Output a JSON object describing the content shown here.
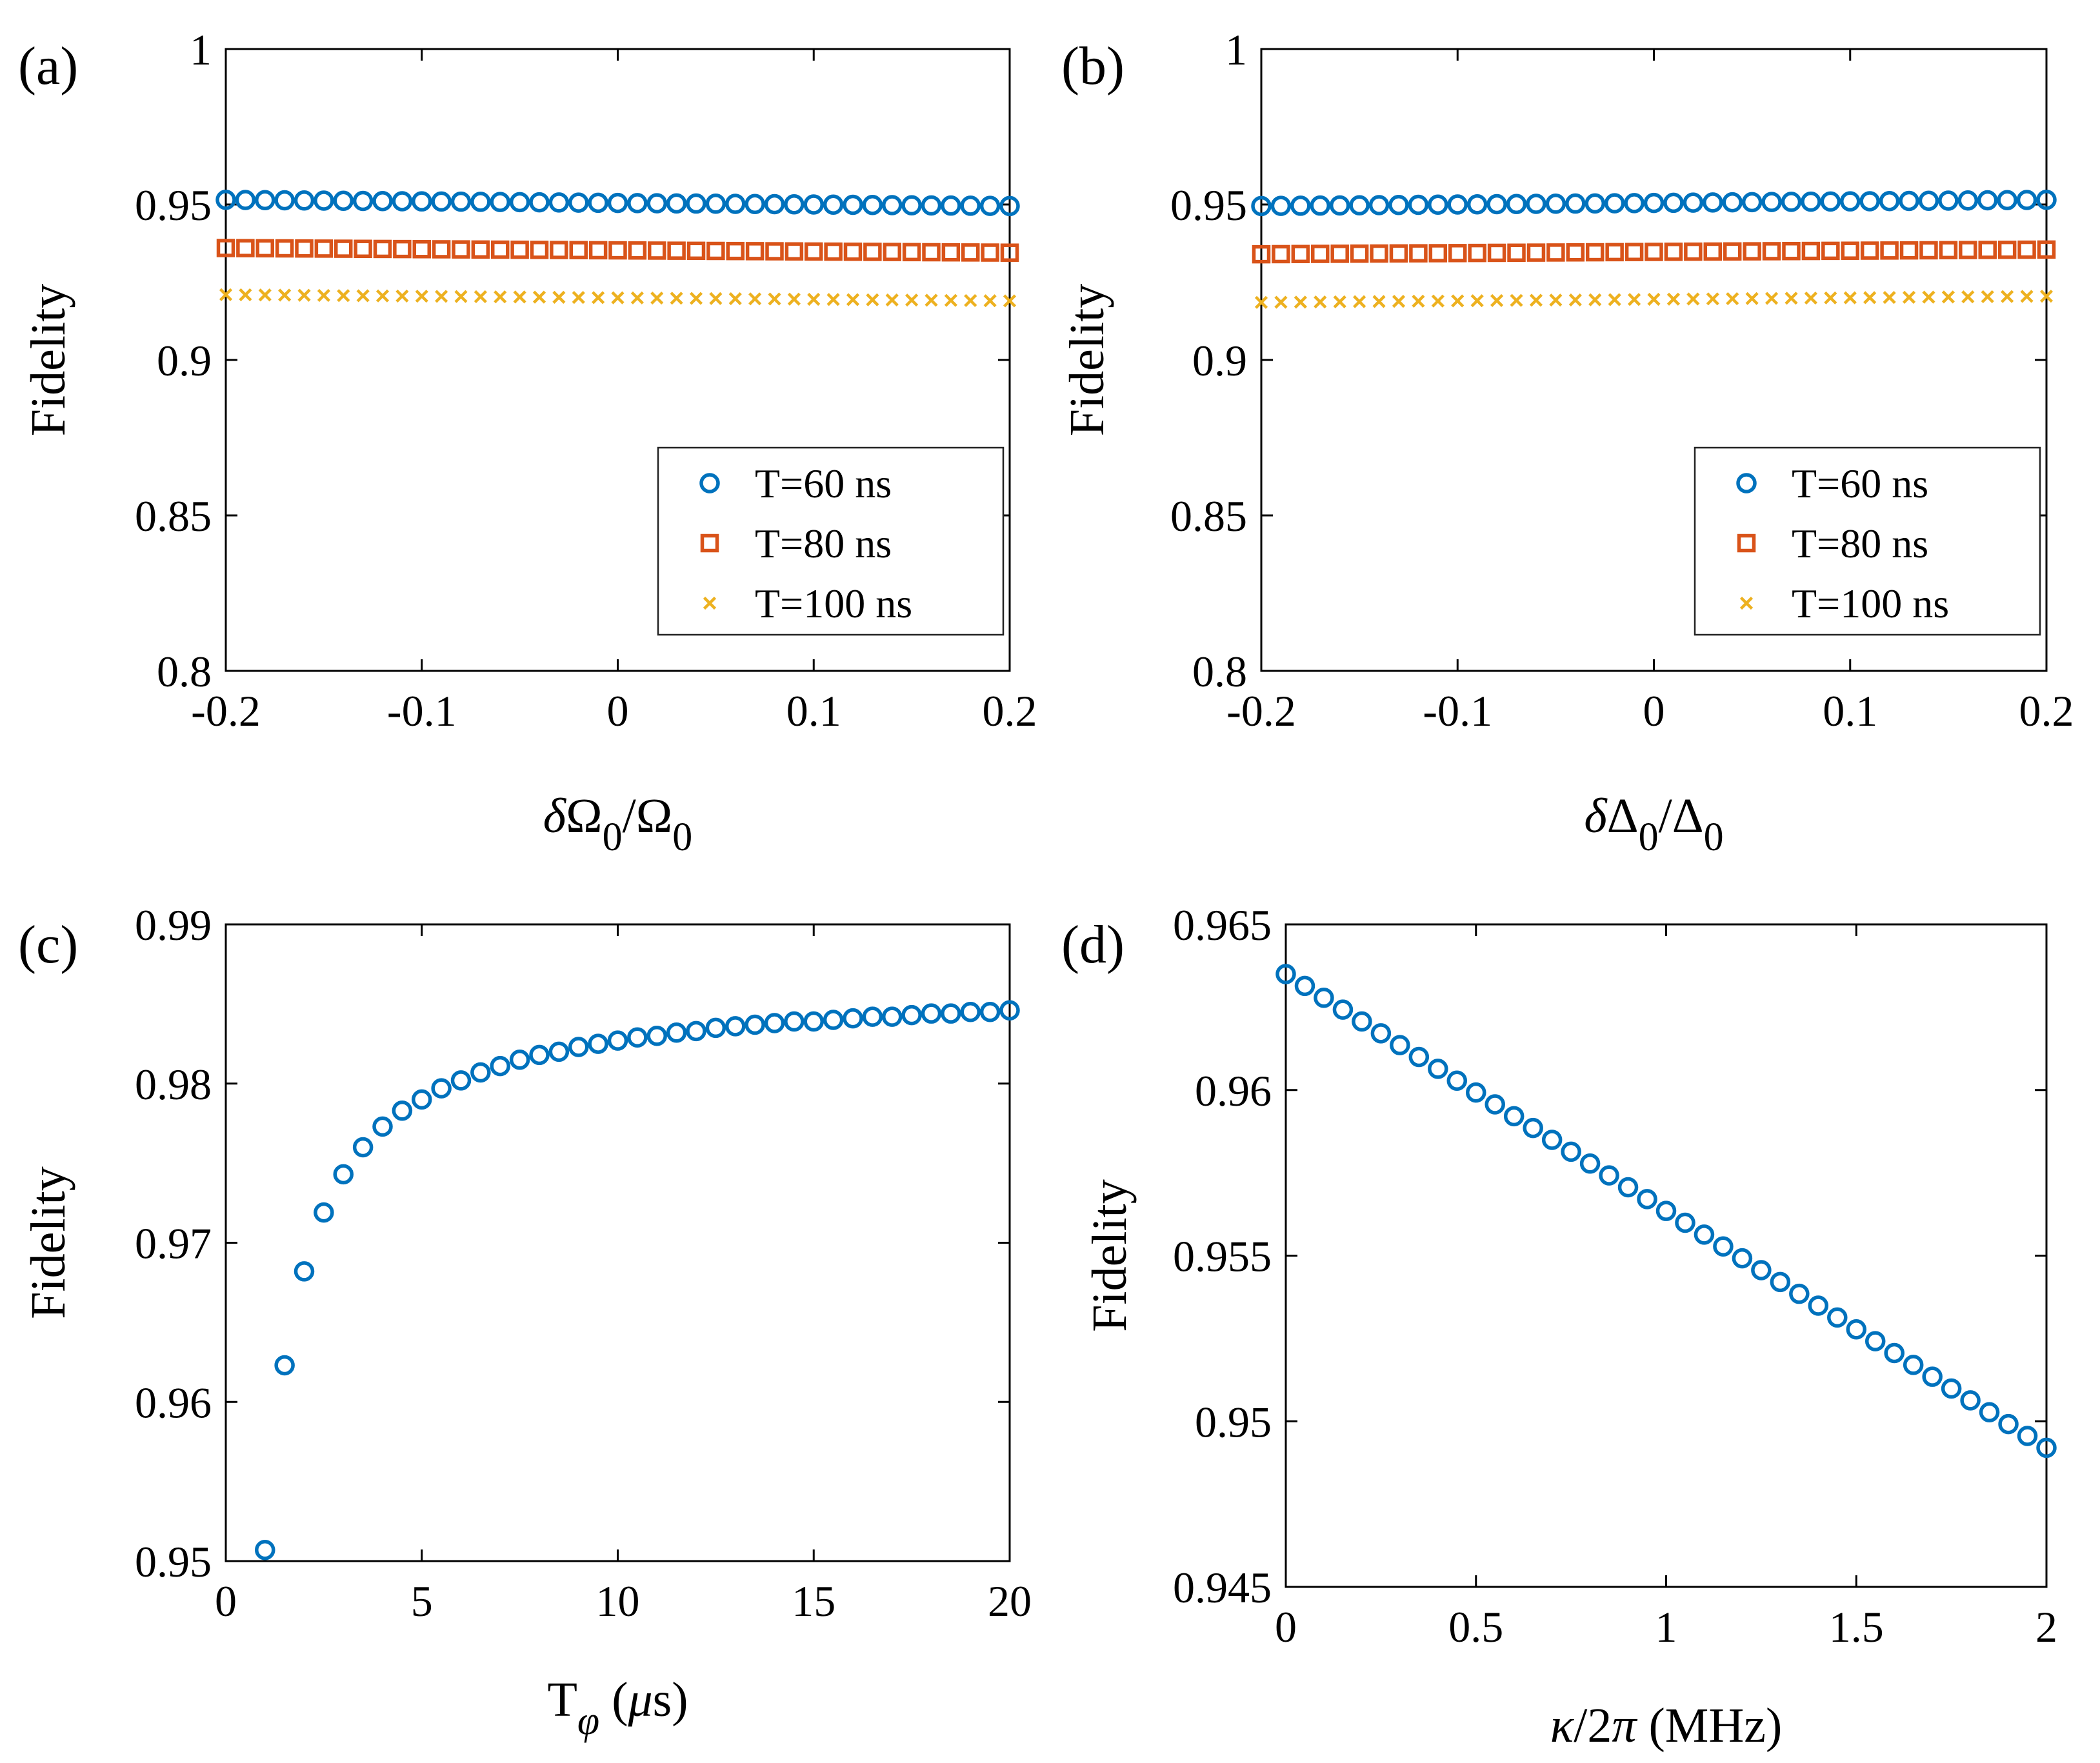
{
  "colors": {
    "series_60": "#0072BD",
    "series_80": "#D95319",
    "series_100": "#EDB120",
    "axes": "#000000"
  },
  "chart_data": [
    {
      "id": "a",
      "panel_label": "(a)",
      "type": "scatter",
      "xlabel": "δΩ0/Ω0",
      "xlabel_parts": {
        "sym": "δΩ",
        "sub": "0",
        "slash": "/Ω",
        "sub2": "0"
      },
      "ylabel": "Fidelity",
      "xlim": [
        -0.2,
        0.2
      ],
      "ylim": [
        0.8,
        1
      ],
      "xticks": [
        -0.2,
        -0.1,
        0,
        0.1,
        0.2
      ],
      "xtick_labels": [
        "-0.2",
        "-0.1",
        "0",
        "0.1",
        "0.2"
      ],
      "yticks": [
        0.8,
        0.85,
        0.9,
        0.95,
        1
      ],
      "ytick_labels": [
        "0.8",
        "0.85",
        "0.9",
        "0.95",
        "1"
      ],
      "legend_position": "bottom-right",
      "series": [
        {
          "name": "T=60 ns",
          "marker": "circle",
          "color": "#0072BD",
          "x_start": -0.2,
          "x_end": 0.2,
          "count": 41,
          "y_start": 0.9515,
          "y_end": 0.9495
        },
        {
          "name": "T=80 ns",
          "marker": "square",
          "color": "#D95319",
          "x_start": -0.2,
          "x_end": 0.2,
          "count": 41,
          "y_start": 0.936,
          "y_end": 0.9345
        },
        {
          "name": "T=100 ns",
          "marker": "x",
          "color": "#EDB120",
          "x_start": -0.2,
          "x_end": 0.2,
          "count": 41,
          "y_start": 0.921,
          "y_end": 0.919
        }
      ]
    },
    {
      "id": "b",
      "panel_label": "(b)",
      "type": "scatter",
      "xlabel": "δΔ0/Δ0",
      "xlabel_parts": {
        "sym": "δΔ",
        "sub": "0",
        "slash": "/Δ",
        "sub2": "0"
      },
      "ylabel": "Fidelity",
      "xlim": [
        -0.2,
        0.2
      ],
      "ylim": [
        0.8,
        1
      ],
      "xticks": [
        -0.2,
        -0.1,
        0,
        0.1,
        0.2
      ],
      "xtick_labels": [
        "-0.2",
        "-0.1",
        "0",
        "0.1",
        "0.2"
      ],
      "yticks": [
        0.8,
        0.85,
        0.9,
        0.95,
        1
      ],
      "ytick_labels": [
        "0.8",
        "0.85",
        "0.9",
        "0.95",
        "1"
      ],
      "legend_position": "bottom-right",
      "series": [
        {
          "name": "T=60 ns",
          "marker": "circle",
          "color": "#0072BD",
          "x_start": -0.2,
          "x_end": 0.2,
          "count": 41,
          "y_start": 0.9495,
          "y_end": 0.9515
        },
        {
          "name": "T=80 ns",
          "marker": "square",
          "color": "#D95319",
          "x_start": -0.2,
          "x_end": 0.2,
          "count": 41,
          "y_start": 0.934,
          "y_end": 0.9355
        },
        {
          "name": "T=100 ns",
          "marker": "x",
          "color": "#EDB120",
          "x_start": -0.2,
          "x_end": 0.2,
          "count": 41,
          "y_start": 0.9185,
          "y_end": 0.9205
        }
      ]
    },
    {
      "id": "c",
      "panel_label": "(c)",
      "type": "scatter",
      "xlabel": "Tφ (μs)",
      "xlabel_parts": {
        "sym": "T",
        "sub": "φ",
        "rest": " (μs)"
      },
      "ylabel": "Fidelity",
      "xlim": [
        0,
        20
      ],
      "ylim": [
        0.95,
        0.99
      ],
      "xticks": [
        0,
        5,
        10,
        15,
        20
      ],
      "xtick_labels": [
        "0",
        "5",
        "10",
        "15",
        "20"
      ],
      "yticks": [
        0.95,
        0.96,
        0.97,
        0.98,
        0.99
      ],
      "ytick_labels": [
        "0.95",
        "0.96",
        "0.97",
        "0.98",
        "0.99"
      ],
      "series": [
        {
          "name": "Fidelity",
          "marker": "circle",
          "color": "#0072BD",
          "x": [
            1,
            1.5,
            2,
            2.5,
            3,
            3.5,
            4,
            4.5,
            5,
            5.5,
            6,
            6.5,
            7,
            7.5,
            8,
            8.5,
            9,
            9.5,
            10,
            10.5,
            11,
            11.5,
            12,
            12.5,
            13,
            13.5,
            14,
            14.5,
            15,
            15.5,
            16,
            16.5,
            17,
            17.5,
            18,
            18.5,
            19,
            19.5,
            20
          ],
          "y": [
            0.9507,
            0.9623,
            0.9682,
            0.9719,
            0.9743,
            0.976,
            0.9773,
            0.9783,
            0.979,
            0.9797,
            0.9802,
            0.9807,
            0.9811,
            0.9815,
            0.9818,
            0.982,
            0.9823,
            0.9825,
            0.9827,
            0.9829,
            0.983,
            0.9832,
            0.9833,
            0.9835,
            0.9836,
            0.9837,
            0.9838,
            0.9839,
            0.9839,
            0.984,
            0.9841,
            0.9842,
            0.9842,
            0.9843,
            0.9844,
            0.9844,
            0.9845,
            0.9845,
            0.9846
          ]
        }
      ]
    },
    {
      "id": "d",
      "panel_label": "(d)",
      "type": "scatter",
      "xlabel": "κ/2π (MHz)",
      "xlabel_parts": {
        "sym": "κ/2π",
        "rest": " (MHz)"
      },
      "ylabel": "Fidelity",
      "xlim": [
        0,
        2
      ],
      "ylim": [
        0.945,
        0.965
      ],
      "xticks": [
        0,
        0.5,
        1,
        1.5,
        2
      ],
      "xtick_labels": [
        "0",
        "0.5",
        "1",
        "1.5",
        "2"
      ],
      "yticks": [
        0.945,
        0.95,
        0.955,
        0.96,
        0.965
      ],
      "ytick_labels": [
        "0.945",
        "0.95",
        "0.955",
        "0.96",
        "0.965"
      ],
      "series": [
        {
          "name": "Fidelity",
          "marker": "circle",
          "color": "#0072BD",
          "x_start": 0,
          "x_end": 2,
          "count": 41,
          "y_start": 0.9635,
          "y_end": 0.9492
        }
      ]
    }
  ]
}
